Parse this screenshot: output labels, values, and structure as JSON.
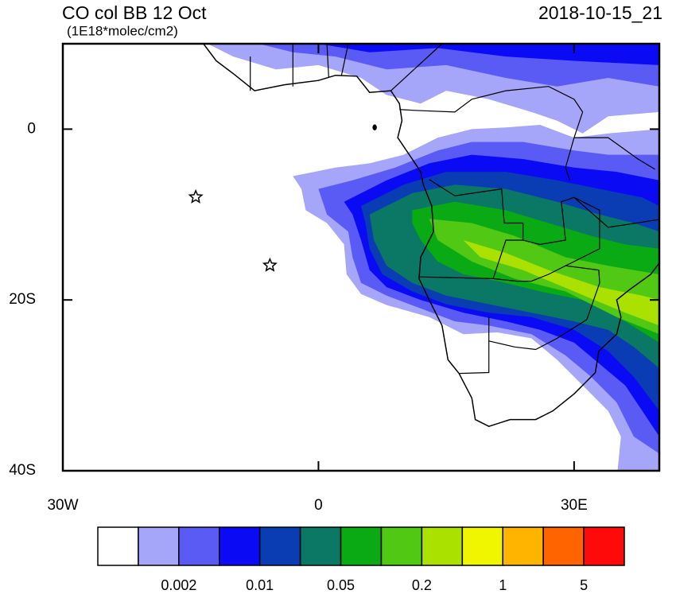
{
  "chart_data": {
    "type": "map",
    "title": "CO col BB 12 Oct",
    "subtitle": "(1E18*molec/cm2)",
    "right_title": "2018-10-15_21",
    "xlim": [
      -30,
      40
    ],
    "ylim": [
      -40,
      10
    ],
    "xticks": [
      {
        "value": -30,
        "label": "30W"
      },
      0,
      {
        "value": 30,
        "label": "30E"
      }
    ],
    "yticks": [
      0,
      {
        "value": -20,
        "label": "20S"
      },
      {
        "value": -40,
        "label": "40S"
      }
    ],
    "markers": {
      "lon": [
        -14.4,
        -5.7
      ],
      "lat": [
        -7.95,
        -15.95
      ]
    },
    "colorbar": {
      "colors": [
        "#ffffff",
        "#a5a5fa",
        "#5a5af5",
        "#0a0af5",
        "#0a3cb4",
        "#0a7864",
        "#0aaa14",
        "#50c814",
        "#aae100",
        "#f0f500",
        "#ffb400",
        "#ff6400",
        "#ff0a0a"
      ],
      "labels": [
        0.002,
        0.01,
        0.05,
        0.2,
        1,
        5
      ]
    }
  }
}
